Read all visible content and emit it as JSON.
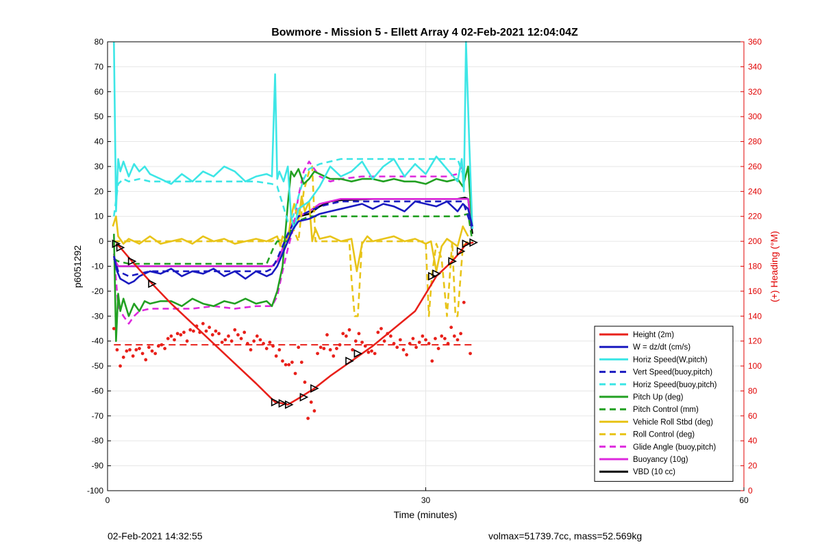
{
  "chart_data": {
    "type": "line",
    "title": "Bowmore - Mission 5 - Ellett Array 4 02-Feb-2021 12:04:04Z",
    "xlabel": "Time (minutes)",
    "ylabel": "p6051292",
    "y2label": "(+) Heading (°M)",
    "xlim": [
      0,
      60
    ],
    "ylim": [
      -100,
      80
    ],
    "y2lim": [
      0,
      360
    ],
    "xticks": [
      0,
      30,
      60
    ],
    "yticks": [
      80,
      70,
      60,
      50,
      40,
      30,
      20,
      10,
      0,
      -10,
      -20,
      -30,
      -40,
      -50,
      -60,
      -70,
      -80,
      -90,
      -100
    ],
    "y2ticks": [
      360,
      340,
      320,
      300,
      280,
      260,
      240,
      220,
      200,
      180,
      160,
      140,
      120,
      100,
      80,
      60,
      40,
      20,
      0
    ],
    "grid": true,
    "legend_position": "bottom-right",
    "colors": {
      "red": "#e8201a",
      "blue": "#1a1ac0",
      "cyan": "#3de6e6",
      "green": "#22a022",
      "yellow": "#e8c419",
      "magenta": "#dd28dd",
      "black": "#000000",
      "right_axis": "#e00000"
    },
    "series": [
      {
        "name": "Height (2m)",
        "color": "#e8201a",
        "style": "solid",
        "x": [
          0.8,
          1.2,
          2.3,
          4.2,
          6,
          8,
          10,
          12,
          14,
          15.8,
          16.5,
          17,
          18,
          19.5,
          21,
          23,
          25,
          27,
          29,
          31,
          32.5,
          33.3,
          33.8,
          34.5
        ],
        "y": [
          -1,
          -2.5,
          -8,
          -17,
          -25,
          -33,
          -41,
          -49,
          -57,
          -64.5,
          -65,
          -65.5,
          -63,
          -59,
          -54,
          -48,
          -42,
          -35,
          -28,
          -14,
          -8,
          -4,
          -1,
          -0.5
        ]
      },
      {
        "name": "W = dz/dt (cm/s)",
        "color": "#1a1ac0",
        "style": "solid",
        "x": [
          0.6,
          0.9,
          1.2,
          1.6,
          2,
          2.5,
          3,
          4,
          5,
          6,
          7,
          8,
          9,
          10,
          11,
          12,
          13,
          14,
          15,
          15.5,
          16,
          16.5,
          17,
          17.5,
          18,
          19,
          20,
          21,
          22,
          23,
          24,
          25,
          26,
          27,
          28,
          29,
          30,
          31,
          32,
          33,
          33.5,
          34,
          34.4
        ],
        "y": [
          -6,
          -12,
          -15,
          -16,
          -17,
          -16,
          -14,
          -12,
          -13,
          -11,
          -14,
          -12,
          -13,
          -11,
          -14,
          -12,
          -15,
          -12,
          -14,
          -13,
          -10,
          -5,
          0,
          5,
          8,
          9,
          11,
          12,
          13,
          14,
          15,
          13,
          15,
          14,
          12,
          16,
          15,
          14,
          16,
          12,
          15,
          13,
          6
        ]
      },
      {
        "name": "Horiz Speed(W,pitch)",
        "color": "#3de6e6",
        "style": "solid",
        "x": [
          0.6,
          0.8,
          1,
          1.2,
          1.5,
          2,
          2.5,
          3,
          3.5,
          4,
          5,
          6,
          7,
          8,
          9,
          10,
          11,
          12,
          13,
          14,
          15,
          15.5,
          15.8,
          16,
          16.2,
          16.6,
          17,
          17.3,
          17.6,
          18,
          19,
          20,
          21,
          22,
          23,
          24,
          25,
          26,
          27,
          28,
          29,
          30,
          31,
          32,
          33,
          33.4,
          33.6,
          33.8,
          34.1,
          34.4
        ],
        "y": [
          80,
          12,
          33,
          28,
          32,
          26,
          31,
          28,
          30,
          27,
          25,
          23,
          27,
          24,
          28,
          26,
          30,
          28,
          24,
          26,
          27,
          26,
          67,
          25,
          28,
          24,
          30,
          10,
          5,
          13,
          16,
          22,
          30,
          26,
          28,
          32,
          25,
          30,
          33,
          26,
          31,
          27,
          34,
          29,
          24,
          33,
          20,
          80,
          40,
          5
        ]
      },
      {
        "name": "Vert Speed(buoy,pitch)",
        "color": "#1a1ac0",
        "style": "dashed",
        "x": [
          0.6,
          1,
          2,
          3,
          4,
          5,
          6,
          8,
          10,
          12,
          14,
          15,
          15.5,
          16,
          16.5,
          17,
          17.5,
          18,
          19,
          20,
          21,
          22,
          24,
          26,
          28,
          30,
          32,
          33,
          33.5,
          34.4
        ],
        "y": [
          -6,
          -12,
          -14,
          -13,
          -12,
          -12,
          -12,
          -12,
          -12,
          -12,
          -12,
          -12,
          -11,
          -7,
          -2,
          3,
          7,
          10,
          12,
          14,
          15,
          16,
          16,
          16,
          16,
          16,
          16,
          16,
          16,
          5
        ]
      },
      {
        "name": "Horiz Speed(buoy,pitch)",
        "color": "#3de6e6",
        "style": "dashed",
        "x": [
          0.6,
          1,
          1.5,
          2,
          3,
          4,
          6,
          8,
          10,
          12,
          14,
          15.5,
          16,
          16.5,
          17,
          17.5,
          18,
          18.5,
          19,
          20,
          21,
          22,
          24,
          26,
          28,
          30,
          32,
          33,
          33.5
        ],
        "y": [
          10,
          23,
          25,
          24,
          25,
          24,
          24,
          24,
          24,
          24,
          24,
          23,
          22,
          15,
          8,
          10,
          18,
          25,
          29,
          31,
          32,
          33,
          33,
          33,
          33,
          33,
          33,
          33,
          27
        ]
      },
      {
        "name": "Pitch Up (deg)",
        "color": "#22a022",
        "style": "solid",
        "x": [
          0.6,
          0.8,
          1,
          1.2,
          1.5,
          2,
          2.5,
          3,
          3.5,
          4,
          5,
          6,
          7,
          8,
          9,
          10,
          11,
          12,
          13,
          14,
          15,
          15.5,
          16,
          16.5,
          17,
          17.3,
          17.6,
          18,
          18.5,
          19,
          19.5,
          20,
          21,
          22,
          23,
          24,
          25,
          26,
          27,
          28,
          29,
          30,
          31,
          32,
          33,
          33.5,
          34,
          34.4
        ],
        "y": [
          3,
          -40,
          -21,
          -28,
          -23,
          -30,
          -25,
          -28,
          -24,
          -25,
          -24,
          -24,
          -26,
          -23,
          -25,
          -26,
          -24,
          -25,
          -23,
          -25,
          -24,
          -26,
          -20,
          -10,
          15,
          28,
          26,
          29,
          23,
          25,
          28,
          27,
          25,
          25,
          24,
          25,
          25,
          24,
          25,
          24,
          24,
          23,
          25,
          24,
          25,
          22,
          30,
          5
        ]
      },
      {
        "name": "Pitch Control (mm)",
        "color": "#22a022",
        "style": "dashed",
        "x": [
          0.6,
          1,
          2,
          5,
          10,
          15,
          15.7,
          16,
          16.5,
          17,
          17.3,
          17.8,
          18.5,
          19,
          20,
          22,
          25,
          28,
          31,
          33,
          34,
          34.4
        ],
        "y": [
          -7,
          -8,
          -9,
          -9,
          -9,
          -9,
          -2,
          0,
          0,
          0,
          5,
          8,
          9,
          10,
          10,
          10,
          10,
          10,
          10,
          10,
          11,
          0
        ]
      },
      {
        "name": "Vehicle Roll Stbd (deg)",
        "color": "#e8c419",
        "style": "solid",
        "x": [
          0.5,
          0.8,
          1,
          1.5,
          2,
          3,
          4,
          5,
          6,
          7,
          8,
          9,
          10,
          11,
          12,
          13,
          14,
          15,
          15.5,
          16,
          16.3,
          16.5,
          17,
          17.3,
          17.6,
          18,
          18.3,
          18.6,
          19,
          19.3,
          19.6,
          20,
          21,
          22,
          23,
          23.5,
          24,
          24.5,
          25,
          26,
          27,
          28,
          29,
          30,
          30.5,
          31,
          31.5,
          32,
          33,
          33.5,
          34
        ],
        "y": [
          6,
          10,
          2,
          -1,
          1,
          -1,
          2,
          -1,
          0,
          1,
          -1,
          2,
          0,
          1,
          -1,
          0,
          1,
          0,
          1,
          2,
          -2,
          2,
          0,
          10,
          15,
          8,
          18,
          12,
          16,
          0,
          5,
          1,
          2,
          0,
          1,
          -12,
          -1,
          2,
          0,
          1,
          2,
          0,
          1,
          -1,
          0,
          -12,
          -2,
          1,
          -2,
          6,
          2
        ]
      },
      {
        "name": "Roll Control (deg)",
        "color": "#e8c419",
        "style": "dashed",
        "x": [
          0.6,
          1,
          2,
          4,
          6,
          8,
          10,
          12,
          14,
          15.5,
          16,
          16.5,
          17,
          17.5,
          18,
          18.5,
          19,
          19.3,
          19.6,
          20,
          21,
          22,
          22.8,
          23,
          23.3,
          23.6,
          24,
          25,
          27,
          29,
          30,
          30.3,
          30.6,
          31,
          31.5,
          32,
          32.5,
          32.8,
          33,
          33.5,
          34
        ],
        "y": [
          0,
          0,
          0,
          0,
          0,
          0,
          0,
          0,
          0,
          0,
          1,
          0,
          0,
          5,
          0,
          20,
          28,
          30,
          0,
          0,
          0,
          0,
          0,
          -15,
          -30,
          -30,
          0,
          0,
          0,
          0,
          0,
          -30,
          -13,
          -1,
          -7,
          -30,
          0,
          -30,
          -30,
          -2,
          0
        ]
      },
      {
        "name": "Glide Angle (buoy,pitch)",
        "color": "#dd28dd",
        "style": "dashed",
        "x": [
          0.6,
          1,
          1.5,
          2,
          2.5,
          3,
          4,
          5,
          6,
          8,
          10,
          12,
          14,
          15.5,
          16,
          16.5,
          17,
          17.5,
          18,
          18.5,
          19,
          19.5,
          20,
          21,
          22,
          24,
          26,
          28,
          30,
          32,
          33,
          33.5
        ],
        "y": [
          -5,
          -26,
          -30,
          -33,
          -30,
          -28,
          -27,
          -27,
          -27,
          -27,
          -26,
          -27,
          -26,
          -26,
          -22,
          -12,
          -3,
          5,
          18,
          28,
          32,
          29,
          26,
          24,
          25,
          26,
          26,
          26,
          26,
          26,
          27,
          31
        ]
      },
      {
        "name": "Buoyancy (10g)",
        "color": "#dd28dd",
        "style": "solid",
        "x": [
          0.6,
          1,
          2,
          5,
          10,
          15,
          15.5,
          16,
          16.5,
          17,
          17.5,
          18,
          19,
          20,
          21,
          22,
          25,
          30,
          33,
          33.7,
          34,
          34.4
        ],
        "y": [
          -7,
          -10,
          -10,
          -10,
          -10,
          -10,
          -10,
          -8,
          -3,
          3,
          8,
          10,
          12,
          15,
          16,
          17,
          17,
          17,
          17,
          17,
          17,
          5
        ]
      },
      {
        "name": "VBD (10 cc)",
        "color": "#000000",
        "style": "solid",
        "x": [
          0.6,
          1,
          2,
          5,
          10,
          15,
          15.5,
          16,
          16.5,
          17,
          17.5,
          18,
          19,
          20,
          21,
          22,
          25,
          30,
          33,
          33.7,
          34,
          34.4
        ],
        "y": [
          -7,
          -10,
          -10,
          -10,
          -10,
          -10,
          -10,
          -8,
          -3,
          3,
          8,
          10,
          11,
          14,
          16,
          16.5,
          17,
          17,
          17,
          17.5,
          17,
          3
        ]
      }
    ],
    "heading_points": {
      "axis": "right",
      "color": "#e8201a",
      "x": [
        0.6,
        0.9,
        1.2,
        1.5,
        1.8,
        2.1,
        2.4,
        2.7,
        3,
        3.3,
        3.6,
        3.9,
        4.2,
        4.5,
        4.8,
        5.1,
        5.4,
        5.7,
        6,
        6.3,
        6.6,
        6.9,
        7.2,
        7.5,
        7.8,
        8.1,
        8.4,
        8.7,
        9,
        9.3,
        9.6,
        9.9,
        10.2,
        10.5,
        10.8,
        11.1,
        11.4,
        11.7,
        12,
        12.3,
        12.6,
        12.9,
        13.2,
        13.5,
        13.8,
        14.1,
        14.4,
        14.7,
        15,
        15.3,
        15.6,
        15.9,
        16.2,
        16.5,
        16.8,
        17.1,
        17.4,
        17.7,
        18,
        18.3,
        18.6,
        18.9,
        19.2,
        19.5,
        19.8,
        20.1,
        20.4,
        20.7,
        21,
        21.3,
        21.6,
        21.9,
        22.2,
        22.5,
        22.8,
        23.1,
        23.4,
        23.7,
        24,
        24.3,
        24.6,
        24.9,
        25.2,
        25.5,
        25.8,
        26.1,
        26.4,
        26.7,
        27,
        27.3,
        27.6,
        27.9,
        28.2,
        28.5,
        28.8,
        29.1,
        29.4,
        29.7,
        30,
        30.3,
        30.6,
        30.9,
        31.2,
        31.5,
        31.8,
        32.1,
        32.4,
        32.7,
        33,
        33.3,
        33.6,
        34.2
      ],
      "y": [
        130,
        113,
        100,
        107,
        112,
        113,
        108,
        113,
        114,
        110,
        105,
        115,
        112,
        110,
        116,
        117,
        114,
        122,
        124,
        121,
        126,
        125,
        127,
        120,
        129,
        128,
        132,
        127,
        134,
        128,
        131,
        125,
        128,
        126,
        119,
        121,
        124,
        120,
        129,
        125,
        122,
        127,
        118,
        113,
        120,
        124,
        121,
        118,
        114,
        119,
        116,
        108,
        113,
        104,
        101,
        101,
        103,
        94,
        115,
        103,
        87,
        58,
        71,
        64,
        110,
        115,
        114,
        125,
        113,
        108,
        114,
        117,
        126,
        124,
        129,
        113,
        120,
        126,
        119,
        116,
        111,
        112,
        110,
        127,
        130,
        120,
        126,
        124,
        118,
        115,
        121,
        113,
        109,
        118,
        122,
        115,
        119,
        124,
        121,
        118,
        104,
        122,
        114,
        124,
        122,
        118,
        131,
        124,
        121,
        126,
        151,
        110
      ]
    },
    "height_markers": {
      "color": "#000000",
      "x": [
        0.8,
        1.2,
        2.3,
        4.2,
        15.8,
        16.5,
        17.1,
        18.5,
        19.5,
        22.8,
        23.6,
        30.6,
        31,
        32.5,
        33.3,
        33.8,
        34.5
      ],
      "y": [
        -1,
        -2.5,
        -8,
        -17,
        -64.5,
        -65,
        -65.5,
        -62.5,
        -59,
        -48,
        -45,
        -14,
        -13,
        -8,
        -4,
        -1,
        -0.5
      ]
    },
    "heading_ref": {
      "axis": "right",
      "value": 117,
      "x": [
        0.6,
        34.5
      ],
      "color": "#e8201a",
      "style": "dashed"
    }
  },
  "footer": {
    "timestamp": "02-Feb-2021 14:32:55",
    "volmax": "volmax=51739.7cc, mass=52.569kg"
  }
}
